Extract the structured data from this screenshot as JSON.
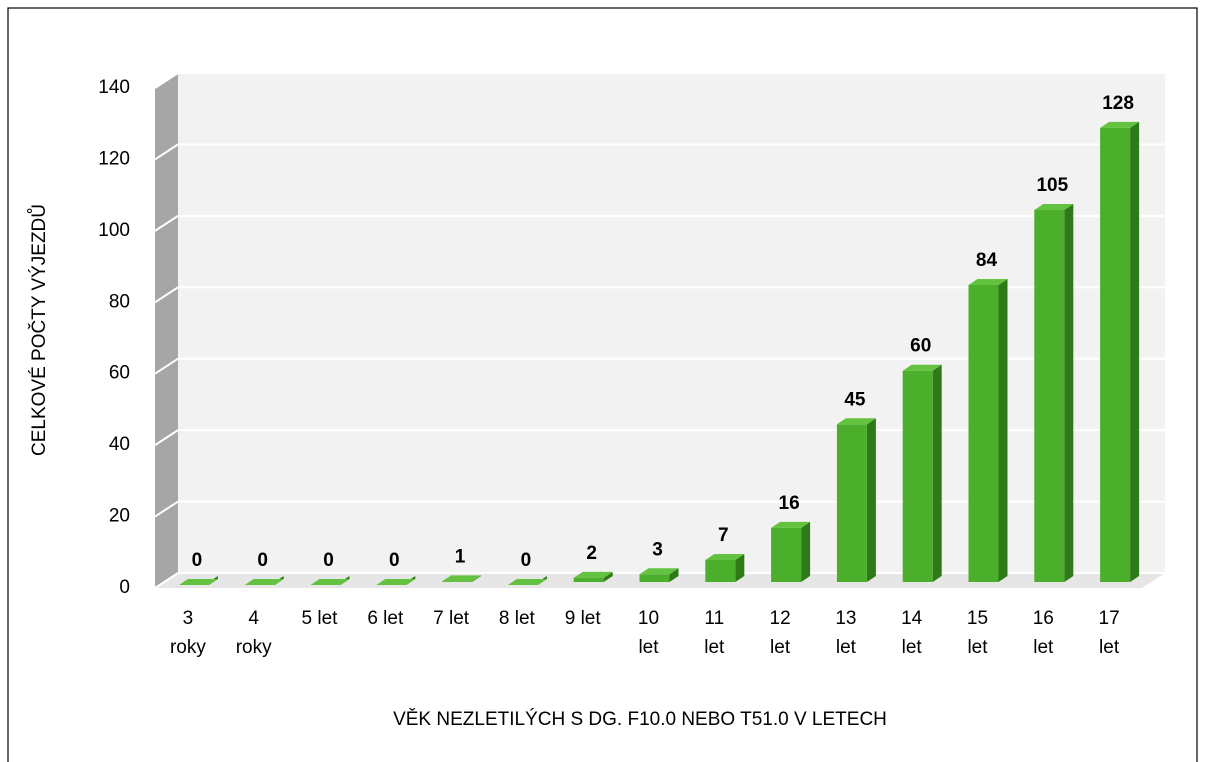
{
  "chart_data": {
    "type": "bar3d",
    "categories": [
      "3 roky",
      "4 roky",
      "5 let",
      "6 let",
      "7 let",
      "8 let",
      "9 let",
      "10 let",
      "11 let",
      "12 let",
      "13 let",
      "14 let",
      "15 let",
      "16 let",
      "17 let"
    ],
    "values": [
      0,
      0,
      0,
      0,
      1,
      0,
      2,
      3,
      7,
      16,
      45,
      60,
      84,
      105,
      128
    ],
    "color": "#4caf2c",
    "ylim": [
      0,
      140
    ],
    "yticks": [
      0,
      20,
      40,
      60,
      80,
      100,
      120,
      140
    ],
    "grid": true,
    "y_label": "CELKOVÉ POČTY VÝJEZDŮ",
    "x_label": "VĚK NEZLETILÝCH S DG. F10.0 NEBO T51.0 V LETECH"
  }
}
